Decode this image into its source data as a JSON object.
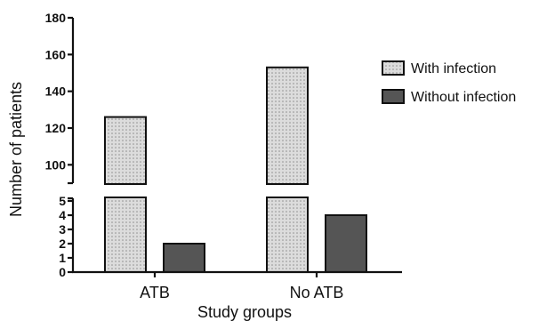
{
  "chart_data": {
    "type": "bar",
    "title": "",
    "xlabel": "Study groups",
    "ylabel": "Number of patients",
    "categories": [
      "ATB",
      "No ATB"
    ],
    "series": [
      {
        "name": "With infection",
        "values": [
          126,
          153
        ],
        "color": "#d6d6d6",
        "pattern": "dotted"
      },
      {
        "name": "Without infection",
        "values": [
          2,
          4
        ],
        "color": "#555555",
        "pattern": "solid"
      }
    ],
    "y_axis_break": {
      "lower_range": [
        0,
        5
      ],
      "upper_range": [
        90,
        180
      ]
    },
    "lower_ticks": [
      "0",
      "1",
      "2",
      "3",
      "4",
      "5"
    ],
    "upper_ticks": [
      "100",
      "120",
      "140",
      "160",
      "180"
    ],
    "legend_position": "right",
    "grid": false
  }
}
